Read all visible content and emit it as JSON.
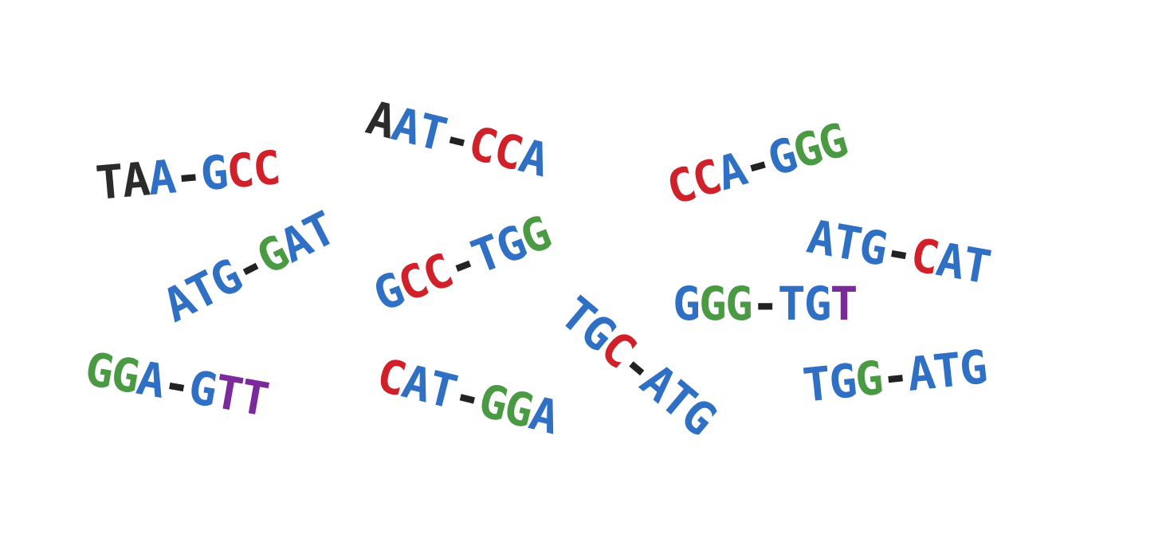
{
  "colors": {
    "black": "#2b2b2b",
    "blue": "#2f6fc4",
    "red": "#d0202a",
    "green": "#4a9a44",
    "purple": "#7a2a9a",
    "dash": "#222222"
  },
  "fragments": [
    {
      "name": "fragment-taa-gcc",
      "text": "TAA-GCC",
      "colors": [
        "black",
        "black",
        "blue",
        "dash",
        "blue",
        "red",
        "red"
      ]
    },
    {
      "name": "fragment-aat-cca",
      "text": "AAT-CCA",
      "colors": [
        "black",
        "blue",
        "blue",
        "dash",
        "red",
        "red",
        "blue"
      ]
    },
    {
      "name": "fragment-cca-ggg",
      "text": "CCA-GGG",
      "colors": [
        "red",
        "red",
        "blue",
        "dash",
        "blue",
        "green",
        "green"
      ]
    },
    {
      "name": "fragment-atg-gat",
      "text": "ATG-GAT",
      "colors": [
        "blue",
        "blue",
        "blue",
        "dash",
        "green",
        "blue",
        "blue"
      ]
    },
    {
      "name": "fragment-gcc-tgg",
      "text": "GCC-TGG",
      "colors": [
        "blue",
        "red",
        "red",
        "dash",
        "blue",
        "blue",
        "green"
      ]
    },
    {
      "name": "fragment-atg-cat",
      "text": "ATG-CAT",
      "colors": [
        "blue",
        "blue",
        "blue",
        "dash",
        "red",
        "blue",
        "blue"
      ]
    },
    {
      "name": "fragment-ggg-tgt",
      "text": "GGG-TGT",
      "colors": [
        "blue",
        "green",
        "green",
        "dash",
        "blue",
        "blue",
        "purple"
      ]
    },
    {
      "name": "fragment-tgc-atg",
      "text": "TGC-ATG",
      "colors": [
        "blue",
        "blue",
        "red",
        "dash",
        "blue",
        "blue",
        "blue"
      ]
    },
    {
      "name": "fragment-gga-gtt",
      "text": "GGA-GTT",
      "colors": [
        "green",
        "green",
        "blue",
        "dash",
        "blue",
        "purple",
        "purple"
      ]
    },
    {
      "name": "fragment-cat-gga",
      "text": "CAT-GGA",
      "colors": [
        "red",
        "blue",
        "blue",
        "dash",
        "green",
        "green",
        "blue"
      ]
    },
    {
      "name": "fragment-tgg-atg",
      "text": "TGG-ATG",
      "colors": [
        "blue",
        "blue",
        "green",
        "dash",
        "blue",
        "blue",
        "blue"
      ]
    }
  ]
}
